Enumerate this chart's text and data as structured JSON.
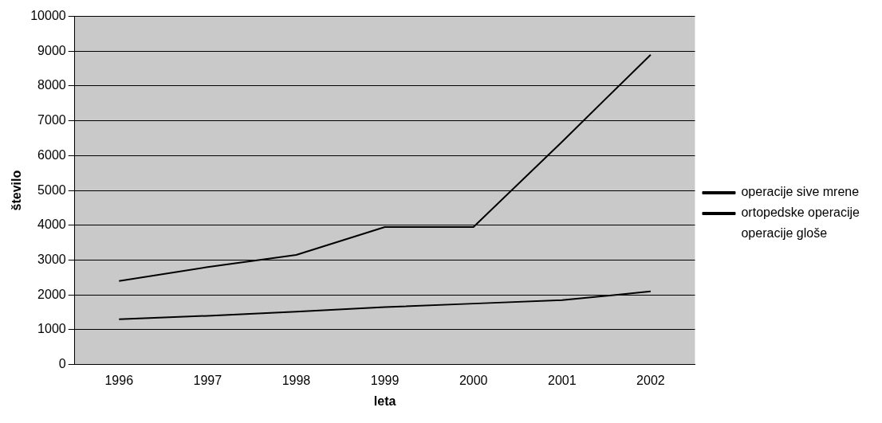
{
  "chart_data": {
    "type": "line",
    "xlabel": "leta",
    "ylabel": "število",
    "categories": [
      "1996",
      "1997",
      "1998",
      "1999",
      "2000",
      "2001",
      "2002"
    ],
    "series": [
      {
        "name": "operacije sive mrene",
        "color": "#000000",
        "values": [
          2400,
          2800,
          3150,
          3950,
          3950,
          6400,
          8900
        ]
      },
      {
        "name": "ortopedske operacije",
        "color": "#000000",
        "values": [
          1300,
          1400,
          1520,
          1650,
          1750,
          1850,
          2100
        ]
      },
      {
        "name": "operacije gloše",
        "values": [
          null,
          null,
          null,
          null,
          null,
          null,
          null
        ]
      }
    ],
    "ylim": [
      0,
      10000
    ],
    "yticks": [
      0,
      1000,
      2000,
      3000,
      4000,
      5000,
      6000,
      7000,
      8000,
      9000,
      10000
    ],
    "grid": "y",
    "legend": "right",
    "marker": "none",
    "line_style": "solid"
  }
}
